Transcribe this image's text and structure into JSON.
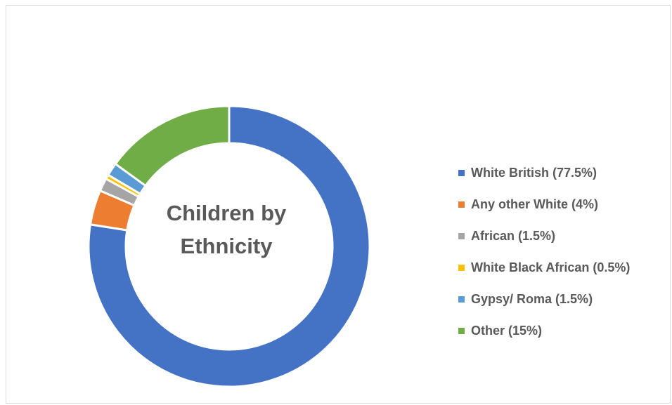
{
  "chart_data": {
    "type": "pie",
    "variant": "donut",
    "title": "Children by Ethnicity",
    "title_lines": [
      "Children by",
      "Ethnicity"
    ],
    "legend_position": "right",
    "unit": "%",
    "slices": [
      {
        "label": "White British (77.5%)",
        "value": 77.5,
        "color": "#4472c4"
      },
      {
        "label": "Any other White (4%)",
        "value": 4,
        "color": "#ed7d31"
      },
      {
        "label": "African (1.5%)",
        "value": 1.5,
        "color": "#a5a5a5"
      },
      {
        "label": "White Black African (0.5%)",
        "value": 0.5,
        "color": "#ffc000"
      },
      {
        "label": "Gypsy/ Roma (1.5%)",
        "value": 1.5,
        "color": "#5b9bd5"
      },
      {
        "label": "Other (15%)",
        "value": 15,
        "color": "#70ad47"
      }
    ]
  }
}
